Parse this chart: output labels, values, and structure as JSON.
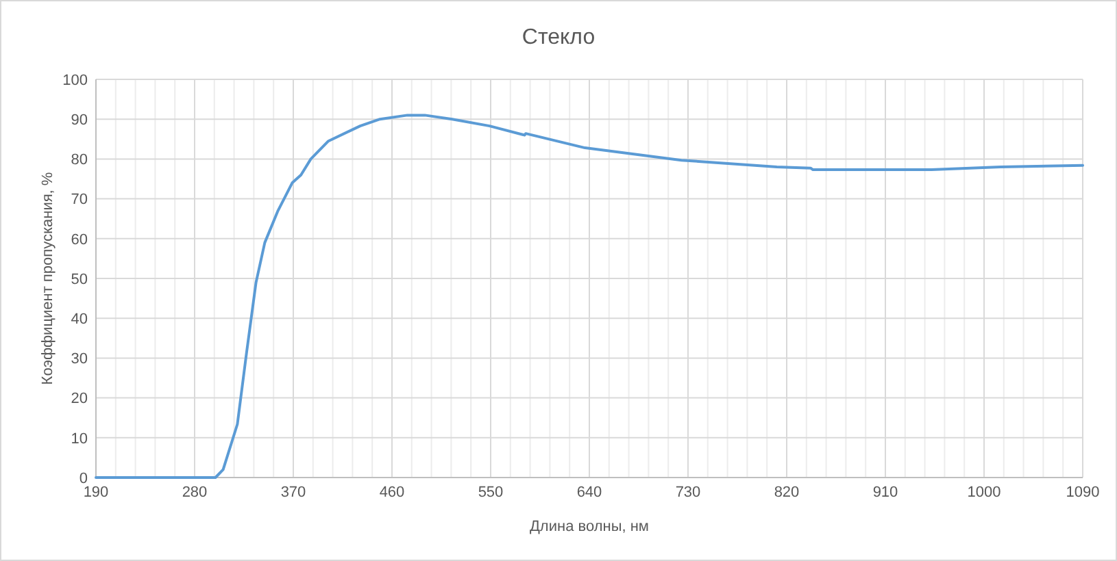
{
  "chart_data": {
    "type": "line",
    "title": "Стекло",
    "xlabel": "Длина волны, нм",
    "ylabel": "Коэффициент пропускания, %",
    "series": [
      {
        "color": "#5b9bd5",
        "x": [
          190,
          230,
          270,
          299,
          306,
          319,
          327.5,
          336,
          344,
          356,
          369,
          377,
          386,
          402,
          431,
          449,
          474,
          490,
          515,
          549,
          581,
          582,
          636,
          724,
          811,
          842,
          844,
          952,
          1015,
          1090
        ],
        "values": [
          0,
          0,
          0,
          0,
          2,
          13.4,
          31.6,
          49,
          59,
          67,
          74,
          76,
          80,
          84.5,
          88.3,
          90,
          91,
          91,
          90,
          88.3,
          86,
          86.4,
          82.8,
          79.7,
          78,
          77.7,
          77.3,
          77.3,
          78,
          78.4
        ]
      }
    ],
    "xlim": [
      190,
      1090
    ],
    "xticks": [
      190,
      280,
      370,
      460,
      550,
      640,
      730,
      820,
      910,
      1000,
      1090
    ],
    "ylim": [
      0,
      100
    ],
    "yticks": [
      0,
      10,
      20,
      30,
      40,
      50,
      60,
      70,
      80,
      90,
      100
    ],
    "grid": true,
    "marker": "none",
    "line_style": "solid"
  }
}
